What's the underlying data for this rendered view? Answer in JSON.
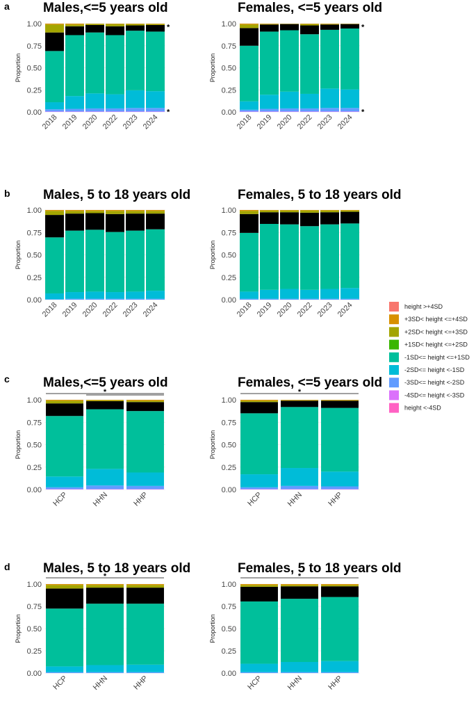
{
  "panel_labels": [
    "a",
    "b",
    "c",
    "d"
  ],
  "colors": {
    "height >+4SD": "#F8766D",
    "+3SD< height <=+4SD": "#D89000",
    "+2SD< height <=+3SD": "#A3A500",
    "+1SD< height <=+2SD": "#39B600",
    "-1SD<= height <=+1SD": "#00BF9B",
    "-2SD<= height <-1SD": "#00BCD8",
    "-3SD<= height <-2SD": "#619CFF",
    "-4SD<= height <-3SD": "#DB72FB",
    "height <-4SD": "#FF61C3"
  },
  "legend": [
    "height >+4SD",
    "+3SD< height <=+4SD",
    "+2SD< height <=+3SD",
    "+1SD< height <=+2SD",
    "-1SD<= height <=+1SD",
    "-2SD<= height <-1SD",
    "-3SD<= height <-2SD",
    "-4SD<= height <-3SD",
    "height <-4SD"
  ],
  "chart_data": [
    {
      "panel": "a",
      "type": "bar",
      "stacked": true,
      "title": "Males,<=5 years old",
      "ylabel": "Proportion",
      "ylim": [
        0,
        1
      ],
      "yticks": [
        "0.00",
        "0.25",
        "0.50",
        "0.75",
        "1.00"
      ],
      "categories": [
        "2018",
        "2019",
        "2020",
        "2022",
        "2023",
        "2024"
      ],
      "significance": [
        {
          "type": "right",
          "label": "*",
          "at": 0.98
        },
        {
          "type": "right",
          "label": "*",
          "at": 0.02
        }
      ],
      "series": [
        {
          "name": "height <-4SD",
          "values": [
            0,
            0,
            0,
            0,
            0,
            0
          ]
        },
        {
          "name": "-4SD<= height <-3SD",
          "values": [
            0.005,
            0.005,
            0.005,
            0.005,
            0.005,
            0.005
          ]
        },
        {
          "name": "-3SD<= height <-2SD",
          "values": [
            0.025,
            0.03,
            0.035,
            0.035,
            0.04,
            0.04
          ]
        },
        {
          "name": "-2SD<= height <-1SD",
          "values": [
            0.08,
            0.145,
            0.17,
            0.16,
            0.2,
            0.19
          ]
        },
        {
          "name": "-1SD<= height <=+1SD",
          "values": [
            0.58,
            0.69,
            0.69,
            0.67,
            0.675,
            0.675
          ]
        },
        {
          "name": "+1SD<= height <=+2SD",
          "values": [
            0.21,
            0.1,
            0.085,
            0.1,
            0.06,
            0.075
          ]
        },
        {
          "name": "+2SD< height <=+3SD",
          "values": [
            0.09,
            0.02,
            0.012,
            0.025,
            0.015,
            0.01
          ]
        },
        {
          "name": "+3SD< height <=+4SD",
          "values": [
            0.01,
            0.01,
            0.003,
            0.005,
            0.005,
            0.005
          ]
        },
        {
          "name": "height >+4SD",
          "values": [
            0,
            0,
            0,
            0,
            0,
            0
          ]
        }
      ]
    },
    {
      "panel": "a",
      "type": "bar",
      "stacked": true,
      "title": "Females, <=5 years old",
      "ylabel": "Proportion",
      "ylim": [
        0,
        1
      ],
      "yticks": [
        "0.00",
        "0.25",
        "0.50",
        "0.75",
        "1.00"
      ],
      "categories": [
        "2018",
        "2019",
        "2020",
        "2022",
        "2023",
        "2024"
      ],
      "significance": [
        {
          "type": "right",
          "label": "*",
          "at": 0.98
        },
        {
          "type": "right",
          "label": "*",
          "at": 0.02
        }
      ],
      "series": [
        {
          "name": "height <-4SD",
          "values": [
            0,
            0,
            0,
            0,
            0,
            0
          ]
        },
        {
          "name": "-4SD<= height <-3SD",
          "values": [
            0.005,
            0.005,
            0.005,
            0.005,
            0.005,
            0.005
          ]
        },
        {
          "name": "-3SD<= height <-2SD",
          "values": [
            0.02,
            0.03,
            0.035,
            0.035,
            0.04,
            0.04
          ]
        },
        {
          "name": "-2SD<= height <-1SD",
          "values": [
            0.095,
            0.16,
            0.19,
            0.165,
            0.22,
            0.21
          ]
        },
        {
          "name": "-1SD<= height <=+1SD",
          "values": [
            0.63,
            0.715,
            0.695,
            0.675,
            0.665,
            0.69
          ]
        },
        {
          "name": "+1SD<= height <=+2SD",
          "values": [
            0.2,
            0.08,
            0.07,
            0.1,
            0.06,
            0.05
          ]
        },
        {
          "name": "+2SD< height <=+3SD",
          "values": [
            0.04,
            0.005,
            0.003,
            0.015,
            0.005,
            0.003
          ]
        },
        {
          "name": "+3SD< height <=+4SD",
          "values": [
            0.01,
            0.005,
            0.002,
            0.005,
            0.005,
            0.002
          ]
        },
        {
          "name": "height >+4SD",
          "values": [
            0,
            0,
            0,
            0,
            0,
            0
          ]
        }
      ]
    },
    {
      "panel": "b",
      "type": "bar",
      "stacked": true,
      "title": "Males, 5 to 18 years old",
      "ylabel": "Proportion",
      "ylim": [
        0,
        1
      ],
      "yticks": [
        "0.00",
        "0.25",
        "0.50",
        "0.75",
        "1.00"
      ],
      "categories": [
        "2018",
        "2019",
        "2020",
        "2022",
        "2023",
        "2024"
      ],
      "significance": [],
      "series": [
        {
          "name": "height <-4SD",
          "values": [
            0,
            0,
            0,
            0,
            0,
            0
          ]
        },
        {
          "name": "-4SD<= height <-3SD",
          "values": [
            0,
            0,
            0,
            0,
            0,
            0
          ]
        },
        {
          "name": "-3SD<= height <-2SD",
          "values": [
            0.005,
            0.01,
            0.01,
            0.01,
            0.01,
            0.01
          ]
        },
        {
          "name": "-2SD<= height <-1SD",
          "values": [
            0.065,
            0.075,
            0.08,
            0.075,
            0.08,
            0.09
          ]
        },
        {
          "name": "-1SD<= height <=+1SD",
          "values": [
            0.625,
            0.685,
            0.69,
            0.67,
            0.68,
            0.685
          ]
        },
        {
          "name": "+1SD<= height <=+2SD",
          "values": [
            0.25,
            0.19,
            0.185,
            0.2,
            0.19,
            0.175
          ]
        },
        {
          "name": "+2SD< height <=+3SD",
          "values": [
            0.045,
            0.03,
            0.025,
            0.035,
            0.03,
            0.03
          ]
        },
        {
          "name": "+3SD< height <=+4SD",
          "values": [
            0.01,
            0.01,
            0.01,
            0.01,
            0.01,
            0.01
          ]
        },
        {
          "name": "height >+4SD",
          "values": [
            0,
            0,
            0,
            0,
            0,
            0
          ]
        }
      ]
    },
    {
      "panel": "b",
      "type": "bar",
      "stacked": true,
      "title": "Females, 5 to 18 years old",
      "ylabel": "Proportion",
      "ylim": [
        0,
        1
      ],
      "yticks": [
        "0.00",
        "0.25",
        "0.50",
        "0.75",
        "1.00"
      ],
      "categories": [
        "2018",
        "2019",
        "2020",
        "2022",
        "2023",
        "2024"
      ],
      "significance": [],
      "series": [
        {
          "name": "height <-4SD",
          "values": [
            0,
            0,
            0,
            0,
            0,
            0
          ]
        },
        {
          "name": "-4SD<= height <-3SD",
          "values": [
            0,
            0,
            0,
            0,
            0,
            0
          ]
        },
        {
          "name": "-3SD<= height <-2SD",
          "values": [
            0.01,
            0.01,
            0.01,
            0.01,
            0.01,
            0.01
          ]
        },
        {
          "name": "-2SD<= height <-1SD",
          "values": [
            0.08,
            0.1,
            0.11,
            0.1,
            0.11,
            0.12
          ]
        },
        {
          "name": "-1SD<= height <=+1SD",
          "values": [
            0.655,
            0.735,
            0.72,
            0.71,
            0.72,
            0.72
          ]
        },
        {
          "name": "+1SD<= height <=+2SD",
          "values": [
            0.21,
            0.13,
            0.135,
            0.15,
            0.135,
            0.13
          ]
        },
        {
          "name": "+2SD< height <=+3SD",
          "values": [
            0.035,
            0.02,
            0.02,
            0.025,
            0.02,
            0.015
          ]
        },
        {
          "name": "+3SD< height <=+4SD",
          "values": [
            0.01,
            0.005,
            0.005,
            0.005,
            0.005,
            0.005
          ]
        },
        {
          "name": "height >+4SD",
          "values": [
            0,
            0,
            0,
            0,
            0,
            0
          ]
        }
      ]
    },
    {
      "panel": "c",
      "type": "bar",
      "stacked": true,
      "title": "Males,<=5 years old",
      "ylabel": "Proportion",
      "ylim": [
        0,
        1
      ],
      "yticks": [
        "0.00",
        "0.25",
        "0.50",
        "0.75",
        "1.00"
      ],
      "categories": [
        "HCP",
        "HHN",
        "HHP"
      ],
      "significance": [
        {
          "type": "bracket",
          "label": "*",
          "from": 0,
          "to": 2
        },
        {
          "type": "bracket",
          "label": "",
          "from": 1,
          "to": 2
        }
      ],
      "series": [
        {
          "name": "height <-4SD",
          "values": [
            0,
            0,
            0
          ]
        },
        {
          "name": "-4SD<= height <-3SD",
          "values": [
            0.005,
            0.005,
            0.005
          ]
        },
        {
          "name": "-3SD<= height <-2SD",
          "values": [
            0.02,
            0.04,
            0.035
          ]
        },
        {
          "name": "-2SD<= height <-1SD",
          "values": [
            0.12,
            0.185,
            0.15
          ]
        },
        {
          "name": "-1SD<= height <=+1SD",
          "values": [
            0.675,
            0.665,
            0.685
          ]
        },
        {
          "name": "+1SD<= height <=+2SD",
          "values": [
            0.14,
            0.09,
            0.1
          ]
        },
        {
          "name": "+2SD< height <=+3SD",
          "values": [
            0.03,
            0.01,
            0.015
          ]
        },
        {
          "name": "+3SD< height <=+4SD",
          "values": [
            0.01,
            0.005,
            0.01
          ]
        },
        {
          "name": "height >+4SD",
          "values": [
            0,
            0,
            0
          ]
        }
      ]
    },
    {
      "panel": "c",
      "type": "bar",
      "stacked": true,
      "title": "Females, <=5 years old",
      "ylabel": "Proportion",
      "ylim": [
        0,
        1
      ],
      "yticks": [
        "0.00",
        "0.25",
        "0.50",
        "0.75",
        "1.00"
      ],
      "categories": [
        "HCP",
        "HHN",
        "HHP"
      ],
      "significance": [
        {
          "type": "bracket",
          "label": "*",
          "from": 0,
          "to": 2
        }
      ],
      "series": [
        {
          "name": "height <-4SD",
          "values": [
            0,
            0,
            0
          ]
        },
        {
          "name": "-4SD<= height <-3SD",
          "values": [
            0.005,
            0.005,
            0.005
          ]
        },
        {
          "name": "-3SD<= height <-2SD",
          "values": [
            0.02,
            0.035,
            0.03
          ]
        },
        {
          "name": "-2SD<= height <-1SD",
          "values": [
            0.145,
            0.2,
            0.165
          ]
        },
        {
          "name": "-1SD<= height <=+1SD",
          "values": [
            0.68,
            0.68,
            0.71
          ]
        },
        {
          "name": "+1SD<= height <=+2SD",
          "values": [
            0.125,
            0.07,
            0.08
          ]
        },
        {
          "name": "+2SD< height <=+3SD",
          "values": [
            0.015,
            0.005,
            0.005
          ]
        },
        {
          "name": "+3SD< height <=+4SD",
          "values": [
            0.01,
            0.005,
            0.005
          ]
        },
        {
          "name": "height >+4SD",
          "values": [
            0,
            0,
            0
          ]
        }
      ]
    },
    {
      "panel": "d",
      "type": "bar",
      "stacked": true,
      "title": "Males, 5 to 18 years old",
      "ylabel": "Proportion",
      "ylim": [
        0,
        1
      ],
      "yticks": [
        "0.00",
        "0.25",
        "0.50",
        "0.75",
        "1.00"
      ],
      "categories": [
        "HCP",
        "HHN",
        "HHP"
      ],
      "significance": [
        {
          "type": "bracket",
          "label": "*",
          "from": 0,
          "to": 2
        }
      ],
      "series": [
        {
          "name": "height <-4SD",
          "values": [
            0,
            0,
            0
          ]
        },
        {
          "name": "-4SD<= height <-3SD",
          "values": [
            0,
            0,
            0
          ]
        },
        {
          "name": "-3SD<= height <-2SD",
          "values": [
            0.01,
            0.01,
            0.01
          ]
        },
        {
          "name": "-2SD<= height <-1SD",
          "values": [
            0.065,
            0.08,
            0.085
          ]
        },
        {
          "name": "-1SD<= height <=+1SD",
          "values": [
            0.65,
            0.69,
            0.685
          ]
        },
        {
          "name": "+1SD<= height <=+2SD",
          "values": [
            0.225,
            0.18,
            0.18
          ]
        },
        {
          "name": "+2SD< height <=+3SD",
          "values": [
            0.04,
            0.03,
            0.03
          ]
        },
        {
          "name": "+3SD< height <=+4SD",
          "values": [
            0.01,
            0.01,
            0.01
          ]
        },
        {
          "name": "height >+4SD",
          "values": [
            0,
            0,
            0
          ]
        }
      ]
    },
    {
      "panel": "d",
      "type": "bar",
      "stacked": true,
      "title": "Females, 5 to 18 years old",
      "ylabel": "Proportion",
      "ylim": [
        0,
        1
      ],
      "yticks": [
        "0.00",
        "0.25",
        "0.50",
        "0.75",
        "1.00"
      ],
      "categories": [
        "HCP",
        "HHN",
        "HHP"
      ],
      "significance": [
        {
          "type": "bracket",
          "label": "*",
          "from": 0,
          "to": 2
        }
      ],
      "series": [
        {
          "name": "height <-4SD",
          "values": [
            0,
            0,
            0
          ]
        },
        {
          "name": "-4SD<= height <-3SD",
          "values": [
            0,
            0,
            0
          ]
        },
        {
          "name": "-3SD<= height <-2SD",
          "values": [
            0.01,
            0.01,
            0.01
          ]
        },
        {
          "name": "-2SD<= height <-1SD",
          "values": [
            0.095,
            0.115,
            0.125
          ]
        },
        {
          "name": "-1SD<= height <=+1SD",
          "values": [
            0.7,
            0.71,
            0.72
          ]
        },
        {
          "name": "+1SD<= height <=+2SD",
          "values": [
            0.165,
            0.14,
            0.12
          ]
        },
        {
          "name": "+2SD< height <=+3SD",
          "values": [
            0.02,
            0.015,
            0.015
          ]
        },
        {
          "name": "+3SD< height <=+4SD",
          "values": [
            0.01,
            0.01,
            0.01
          ]
        },
        {
          "name": "height >+4SD",
          "values": [
            0,
            0,
            0
          ]
        }
      ]
    }
  ]
}
